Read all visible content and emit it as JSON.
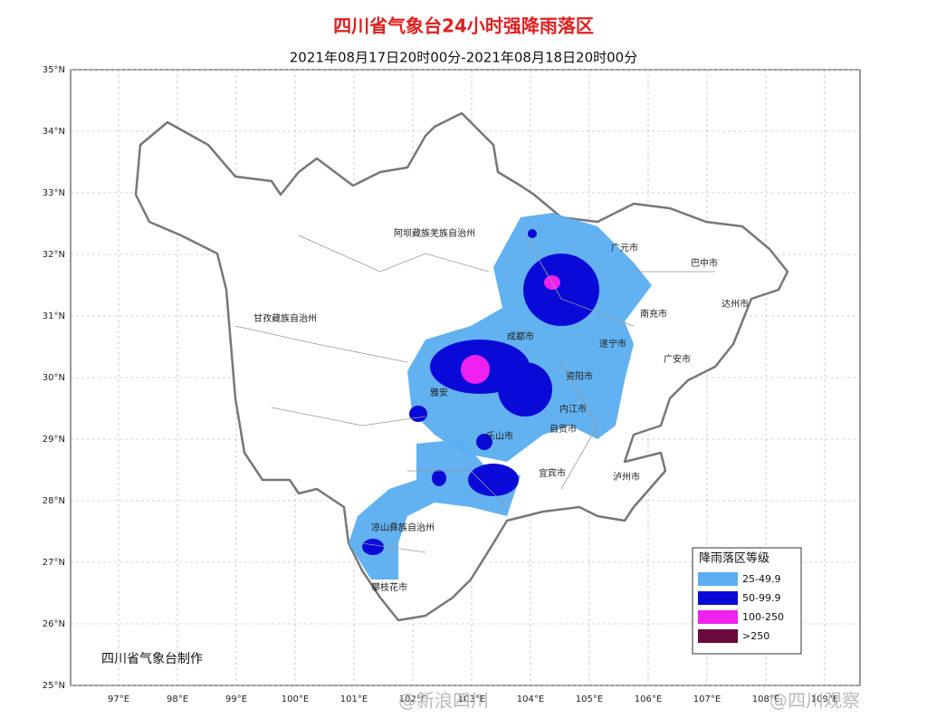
{
  "header": {
    "title": "四川省气象台24小时强降雨落区",
    "subtitle": "2021年08月17日20时00分-2021年08月18日20时00分"
  },
  "axes": {
    "lat_labels": [
      "35°N",
      "34°N",
      "33°N",
      "32°N",
      "31°N",
      "30°N",
      "29°N",
      "28°N",
      "27°N",
      "26°N",
      "25°N"
    ],
    "lon_labels": [
      "97°E",
      "98°E",
      "99°E",
      "100°E",
      "101°E",
      "102°E",
      "103°E",
      "104°E",
      "105°E",
      "106°E",
      "107°E",
      "108°E",
      "109°E"
    ]
  },
  "places": [
    "阿坝藏族羌族自治州",
    "甘孜藏族自治州",
    "广元市",
    "巴中市",
    "达州市",
    "南充市",
    "成都市",
    "遂宁市",
    "广安市",
    "雅安",
    "资阳市",
    "内江市",
    "乐山市",
    "自贡市",
    "宜宾市",
    "泸州市",
    "凉山彝族自治州",
    "攀枝花市"
  ],
  "legend": {
    "title": "降雨落区等级",
    "items": [
      {
        "label": "25-49.9",
        "color": "#5aaef0"
      },
      {
        "label": "50-99.9",
        "color": "#0a0ad8"
      },
      {
        "label": "100-250",
        "color": "#f020f0"
      },
      {
        "label": ">250",
        "color": "#6a0a3a"
      }
    ]
  },
  "credit": "四川省气象台制作",
  "watermarks": [
    "@新浪四川",
    "@四川观察"
  ]
}
